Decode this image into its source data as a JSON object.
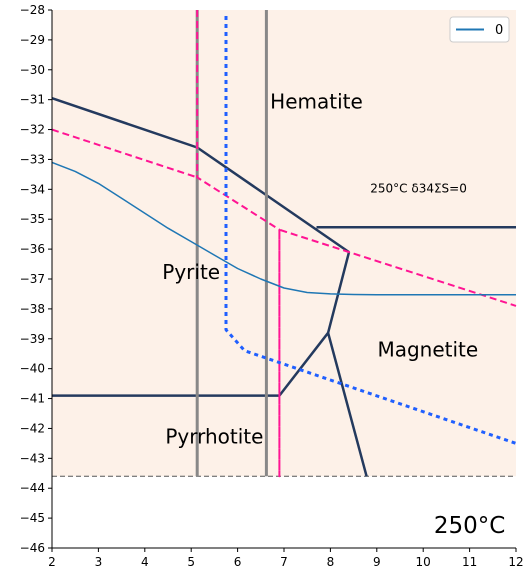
{
  "chart_data": {
    "type": "line",
    "xlim": [
      2,
      12
    ],
    "ylim": [
      -46,
      -28
    ],
    "x_ticks": [
      2,
      3,
      4,
      5,
      6,
      7,
      8,
      9,
      10,
      11,
      12
    ],
    "y_ticks": [
      -28,
      -29,
      -30,
      -31,
      -32,
      -33,
      -34,
      -35,
      -36,
      -37,
      -38,
      -39,
      -40,
      -41,
      -42,
      -43,
      -44,
      -45,
      -46
    ],
    "grid": false,
    "legend": {
      "placement": "top-right",
      "entries": [
        {
          "label": "0",
          "color": "#1f77b4"
        }
      ]
    },
    "stability_floor": -43.6,
    "region_labels": [
      {
        "id": "hematite",
        "text": "Hematite",
        "x": 7.7,
        "y": -31.3
      },
      {
        "id": "pyrite",
        "text": "Pyrite",
        "x": 5.0,
        "y": -37.0
      },
      {
        "id": "magnetite",
        "text": "Magnetite",
        "x": 10.1,
        "y": -39.6
      },
      {
        "id": "pyrrhotite",
        "text": "Pyrrhotite",
        "x": 5.5,
        "y": -42.5
      }
    ],
    "annotation": {
      "text": "250°C  δ34ΣS=0",
      "x": 9.9,
      "y": -34.1
    },
    "temperature_label": {
      "text": "250°C",
      "x": 11.0,
      "y": -45.5
    },
    "series": [
      {
        "id": "boundary-hem-pyr",
        "color": "#243a5e",
        "style": "solid",
        "width": 2.5,
        "x": [
          2,
          5.13,
          8.4
        ],
        "y": [
          -30.95,
          -32.6,
          -36.1
        ]
      },
      {
        "id": "boundary-hem-mag",
        "color": "#243a5e",
        "style": "solid",
        "width": 2.5,
        "x": [
          7.7,
          12
        ],
        "y": [
          -35.27,
          -35.27
        ]
      },
      {
        "id": "boundary-pyr-mag",
        "color": "#243a5e",
        "style": "solid",
        "width": 2.5,
        "x": [
          8.4,
          7.95,
          6.9
        ],
        "y": [
          -36.1,
          -38.8,
          -40.9
        ]
      },
      {
        "id": "boundary-pyr-po",
        "color": "#243a5e",
        "style": "solid",
        "width": 2.5,
        "x": [
          2,
          6.9
        ],
        "y": [
          -40.9,
          -40.9
        ]
      },
      {
        "id": "boundary-mag-po",
        "color": "#243a5e",
        "style": "solid",
        "width": 2.5,
        "x": [
          7.95,
          8.78
        ],
        "y": [
          -38.8,
          -43.6
        ]
      },
      {
        "id": "gray-line-left",
        "color": "#888888",
        "style": "solid",
        "width": 3,
        "x": [
          5.13,
          5.13
        ],
        "y": [
          -28,
          -43.6
        ]
      },
      {
        "id": "gray-line-right",
        "color": "#888888",
        "style": "solid",
        "width": 3,
        "x": [
          6.62,
          6.62
        ],
        "y": [
          -28,
          -43.6
        ]
      },
      {
        "id": "pink-dashed",
        "color": "#ff1493",
        "style": "dashed",
        "width": 2,
        "x": [
          5.13,
          5.13,
          5.13,
          6.9,
          6.9,
          6.9,
          12
        ],
        "y": [
          -28,
          -33.6,
          -33.6,
          -35.35,
          -43.6,
          -35.35,
          -37.9
        ]
      },
      {
        "id": "pink-dashed-left",
        "color": "#ff1493",
        "style": "dashed",
        "width": 2,
        "x": [
          2,
          5.13
        ],
        "y": [
          -32.0,
          -33.6
        ]
      },
      {
        "id": "blue-dotted",
        "color": "#1f5fff",
        "style": "dotted",
        "width": 3,
        "x": [
          5.75,
          5.75,
          6.15,
          12
        ],
        "y": [
          -28.2,
          -38.7,
          -39.4,
          -42.5
        ]
      },
      {
        "id": "series-0",
        "name": "0",
        "color": "#1f77b4",
        "style": "solid",
        "width": 1.5,
        "x": [
          2,
          2.5,
          3,
          3.5,
          4,
          4.5,
          5,
          5.5,
          6,
          6.5,
          7,
          7.5,
          8,
          8.5,
          9,
          10,
          11,
          12
        ],
        "y": [
          -33.1,
          -33.4,
          -33.8,
          -34.3,
          -34.8,
          -35.3,
          -35.75,
          -36.2,
          -36.65,
          -37.0,
          -37.3,
          -37.45,
          -37.5,
          -37.52,
          -37.53,
          -37.53,
          -37.53,
          -37.53
        ]
      }
    ]
  },
  "colors": {
    "region_fill": "#fdf1e8",
    "axis": "#000000"
  }
}
